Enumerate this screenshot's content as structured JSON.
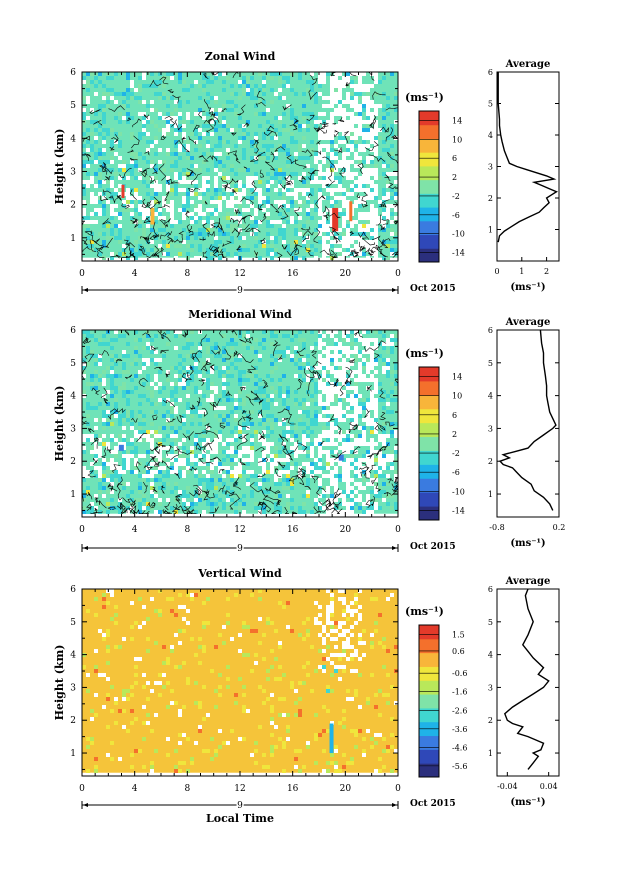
{
  "colorbar_unit": "(ms⁻¹)",
  "avg_unit": "(ms⁻¹)",
  "date_label": "Oct 2015",
  "day_label": "9",
  "x_axis_label": "Local Time",
  "y_axis_label": "Height (km)",
  "chart_data": [
    {
      "type": "heatmap",
      "title": "Zonal Wind",
      "xlabel": "",
      "ylabel": "Height (km)",
      "x_ticks": [
        "0",
        "4",
        "8",
        "12",
        "16",
        "20",
        "0"
      ],
      "y_ticks": [
        "1",
        "2",
        "3",
        "4",
        "5",
        "6"
      ],
      "xlim": [
        0,
        24
      ],
      "ylim": [
        0.3,
        6
      ],
      "colorbar_ticks": [
        "14",
        "10",
        "6",
        "2",
        "-2",
        "-6",
        "-10",
        "-14"
      ],
      "colorbar_range": [
        -16,
        16
      ],
      "colormap": [
        "#2b2f7d",
        "#2f48b8",
        "#3a7be0",
        "#1fb3e8",
        "#40d6d0",
        "#7fe3a8",
        "#b9e85a",
        "#f0e63c",
        "#f8b53a",
        "#f4702c",
        "#e33a2a"
      ],
      "background_color": "#6fe3b8"
    },
    {
      "type": "line",
      "title": "Average",
      "xlabel": "(ms⁻¹)",
      "x_ticks": [
        "0",
        "1",
        "2"
      ],
      "y_ticks": [
        "1",
        "2",
        "3",
        "4",
        "5",
        "6"
      ],
      "xlim": [
        0,
        2.5
      ],
      "ylim": [
        0,
        6
      ],
      "series": [
        {
          "x": [
            0.05,
            0.1,
            0.3,
            0.6,
            0.9,
            1.3,
            1.7,
            1.9,
            2.1,
            2.0,
            2.2,
            2.4,
            2.1,
            1.8,
            1.5,
            2.3,
            2.0,
            1.6,
            1.2,
            0.8,
            0.5,
            0.4,
            0.3,
            0.2,
            0.15,
            0.1,
            0.1,
            0.05,
            0.05
          ],
          "y": [
            0.6,
            0.8,
            0.95,
            1.1,
            1.25,
            1.4,
            1.55,
            1.7,
            1.85,
            2.0,
            2.1,
            2.2,
            2.3,
            2.4,
            2.5,
            2.6,
            2.7,
            2.8,
            2.9,
            3.0,
            3.1,
            3.3,
            3.5,
            3.8,
            4.0,
            4.3,
            4.5,
            5.0,
            6.0
          ]
        }
      ]
    },
    {
      "type": "heatmap",
      "title": "Meridional Wind",
      "xlabel": "",
      "ylabel": "Height (km)",
      "x_ticks": [
        "0",
        "4",
        "8",
        "12",
        "16",
        "20",
        "0"
      ],
      "y_ticks": [
        "1",
        "2",
        "3",
        "4",
        "5",
        "6"
      ],
      "xlim": [
        0,
        24
      ],
      "ylim": [
        0.3,
        6
      ],
      "colorbar_ticks": [
        "14",
        "10",
        "6",
        "2",
        "-2",
        "-6",
        "-10",
        "-14"
      ],
      "colorbar_range": [
        -16,
        16
      ],
      "colormap": [
        "#2b2f7d",
        "#2f48b8",
        "#3a7be0",
        "#1fb3e8",
        "#40d6d0",
        "#7fe3a8",
        "#b9e85a",
        "#f0e63c",
        "#f8b53a",
        "#f4702c",
        "#e33a2a"
      ],
      "background_color": "#6fe3b8"
    },
    {
      "type": "line",
      "title": "Average",
      "xlabel": "(ms⁻¹)",
      "x_ticks": [
        "-0.8",
        "0.2"
      ],
      "y_ticks": [
        "1",
        "2",
        "3",
        "4",
        "5",
        "6"
      ],
      "xlim": [
        -0.8,
        0.2
      ],
      "ylim": [
        0.3,
        6
      ],
      "series": [
        {
          "x": [
            0.1,
            0.05,
            -0.05,
            -0.2,
            -0.25,
            -0.4,
            -0.5,
            -0.55,
            -0.7,
            -0.75,
            -0.6,
            -0.7,
            -0.5,
            -0.3,
            -0.2,
            -0.05,
            0.1,
            0.15,
            0.1,
            0.05,
            0.02,
            0.0,
            0.0,
            -0.02,
            -0.05,
            -0.05,
            -0.08,
            -0.1
          ],
          "y": [
            0.5,
            0.7,
            0.9,
            1.1,
            1.3,
            1.5,
            1.7,
            1.8,
            1.9,
            2.0,
            2.1,
            2.2,
            2.3,
            2.4,
            2.6,
            2.8,
            3.0,
            3.1,
            3.3,
            3.5,
            3.8,
            4.0,
            4.3,
            4.6,
            5.0,
            5.3,
            5.6,
            6.0
          ]
        }
      ]
    },
    {
      "type": "heatmap",
      "title": "Vertical Wind",
      "xlabel": "Local Time",
      "ylabel": "Height (km)",
      "x_ticks": [
        "0",
        "4",
        "8",
        "12",
        "16",
        "20",
        "0"
      ],
      "y_ticks": [
        "1",
        "2",
        "3",
        "4",
        "5",
        "6"
      ],
      "xlim": [
        0,
        24
      ],
      "ylim": [
        0.3,
        6
      ],
      "colorbar_ticks": [
        "1.5",
        "0.6",
        "-0.6",
        "-1.6",
        "-2.6",
        "-3.6",
        "-4.6",
        "-5.6"
      ],
      "colorbar_range": [
        -6.2,
        2.0
      ],
      "colormap": [
        "#2b2f7d",
        "#2f48b8",
        "#3a7be0",
        "#1fb3e8",
        "#40d6d0",
        "#7fe3a8",
        "#b9e85a",
        "#f0e63c",
        "#f8b53a",
        "#f4702c",
        "#e33a2a"
      ],
      "background_color": "#f5c43a"
    },
    {
      "type": "line",
      "title": "Average",
      "xlabel": "(ms⁻¹)",
      "x_ticks": [
        "-0.04",
        "0.04"
      ],
      "y_ticks": [
        "1",
        "2",
        "3",
        "4",
        "5",
        "6"
      ],
      "xlim": [
        -0.06,
        0.06
      ],
      "ylim": [
        0.3,
        6
      ],
      "series": [
        {
          "x": [
            0.0,
            0.01,
            0.02,
            0.01,
            0.025,
            0.03,
            0.0,
            -0.02,
            -0.01,
            -0.03,
            -0.04,
            -0.045,
            -0.03,
            -0.01,
            0.01,
            0.03,
            0.04,
            0.02,
            0.03,
            0.01,
            0.0,
            -0.01,
            0.0,
            0.01,
            0.0,
            -0.005,
            0.0
          ],
          "y": [
            0.5,
            0.7,
            0.9,
            1.0,
            1.1,
            1.3,
            1.5,
            1.6,
            1.8,
            1.9,
            2.0,
            2.2,
            2.4,
            2.6,
            2.8,
            3.0,
            3.2,
            3.4,
            3.6,
            3.9,
            4.1,
            4.3,
            4.6,
            5.0,
            5.4,
            5.8,
            6.0
          ]
        }
      ]
    }
  ]
}
